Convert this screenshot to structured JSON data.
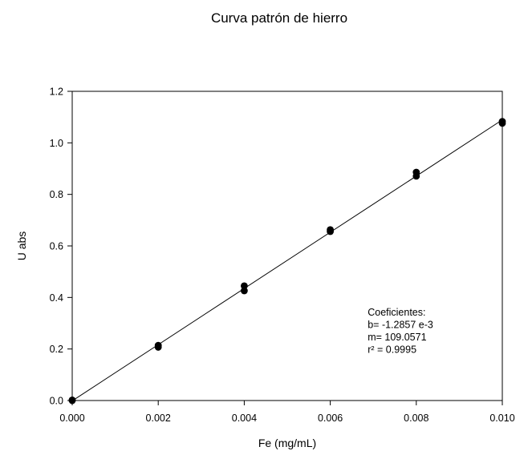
{
  "chart_data": {
    "type": "scatter",
    "title": "Curva patrón de hierro",
    "xlabel": "Fe (mg/mL)",
    "ylabel": "U abs",
    "xlim": [
      0,
      0.01
    ],
    "ylim": [
      0,
      1.2
    ],
    "x_ticks": [
      "0.000",
      "0.002",
      "0.004",
      "0.006",
      "0.008",
      "0.010"
    ],
    "x_tick_values": [
      0,
      0.002,
      0.004,
      0.006,
      0.008,
      0.01
    ],
    "y_ticks": [
      "0.0",
      "0.2",
      "0.4",
      "0.6",
      "0.8",
      "1.0",
      "1.2"
    ],
    "y_tick_values": [
      0,
      0.2,
      0.4,
      0.6,
      0.8,
      1.0,
      1.2
    ],
    "grid": false,
    "series": [
      {
        "points": [
          {
            "x": 0.0,
            "y": 0.0
          },
          {
            "x": 0.0,
            "y": 0.002
          },
          {
            "x": 0.002,
            "y": 0.207
          },
          {
            "x": 0.002,
            "y": 0.214
          },
          {
            "x": 0.004,
            "y": 0.426
          },
          {
            "x": 0.004,
            "y": 0.445
          },
          {
            "x": 0.006,
            "y": 0.656
          },
          {
            "x": 0.006,
            "y": 0.663
          },
          {
            "x": 0.008,
            "y": 0.871
          },
          {
            "x": 0.008,
            "y": 0.886
          },
          {
            "x": 0.01,
            "y": 1.076
          },
          {
            "x": 0.01,
            "y": 1.083
          }
        ],
        "color": "#000000"
      }
    ],
    "fit_line": {
      "intercept": -0.0012857,
      "slope": 109.0571,
      "x_range": [
        0,
        0.01
      ],
      "color": "#000000"
    },
    "annotation": {
      "lines": [
        "Coeficientes:",
        "b= -1.2857 e-3",
        "m= 109.0571",
        "r² = 0.9995"
      ],
      "anchor": {
        "x": 0.00687,
        "y": 0.33
      }
    }
  }
}
